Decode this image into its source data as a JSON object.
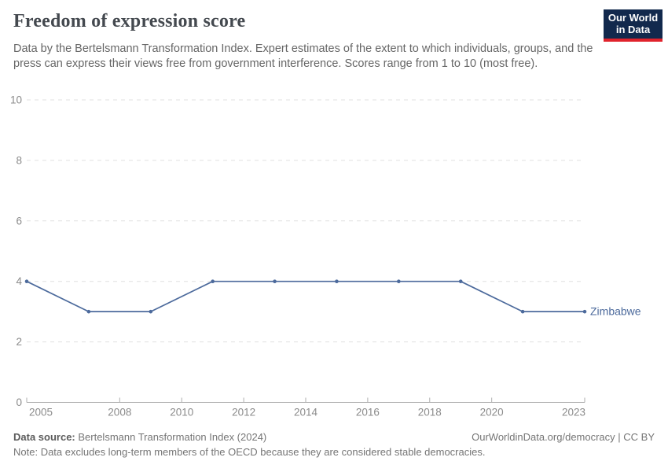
{
  "header": {
    "title": "Freedom of expression score",
    "subtitle": "Data by the Bertelsmann Transformation Index. Expert estimates of the extent to which individuals, groups, and the press can express their views free from government interference. Scores range from 1 to 10 (most free)."
  },
  "logo": {
    "line1": "Our World",
    "line2": "in Data"
  },
  "chart_data": {
    "type": "line",
    "title": "Freedom of expression score",
    "series": [
      {
        "name": "Zimbabwe",
        "x": [
          2005,
          2007,
          2009,
          2011,
          2013,
          2015,
          2017,
          2019,
          2021,
          2023
        ],
        "values": [
          4,
          3,
          3,
          4,
          4,
          4,
          4,
          4,
          3,
          3
        ],
        "color": "#4c6a9c"
      }
    ],
    "entity_label": "Zimbabwe",
    "xlabel": "",
    "ylabel": "",
    "xlim": [
      2005,
      2023
    ],
    "ylim": [
      0,
      10
    ],
    "yticks": [
      0,
      2,
      4,
      6,
      8,
      10
    ],
    "xticks": [
      2005,
      2008,
      2010,
      2012,
      2014,
      2016,
      2018,
      2020,
      2023
    ],
    "grid": "horizontal-dashed",
    "legend_position": "end-of-line-label"
  },
  "footer": {
    "source_label": "Data source:",
    "source_value": " Bertelsmann Transformation Index (2024)",
    "credit": "OurWorldinData.org/democracy | CC BY",
    "note_label": "Note:",
    "note_value": " Data excludes long-term members of the OECD because they are considered stable democracies."
  },
  "colors": {
    "line": "#4c6a9c",
    "axis_text": "#8b8b8b",
    "grid": "#e0e0e0",
    "axis_line": "#aeaeae",
    "title": "#44494f",
    "subtitle": "#666666",
    "footer": "#757575",
    "logo_bg": "#12294d",
    "logo_stripe": "#e0232c"
  }
}
